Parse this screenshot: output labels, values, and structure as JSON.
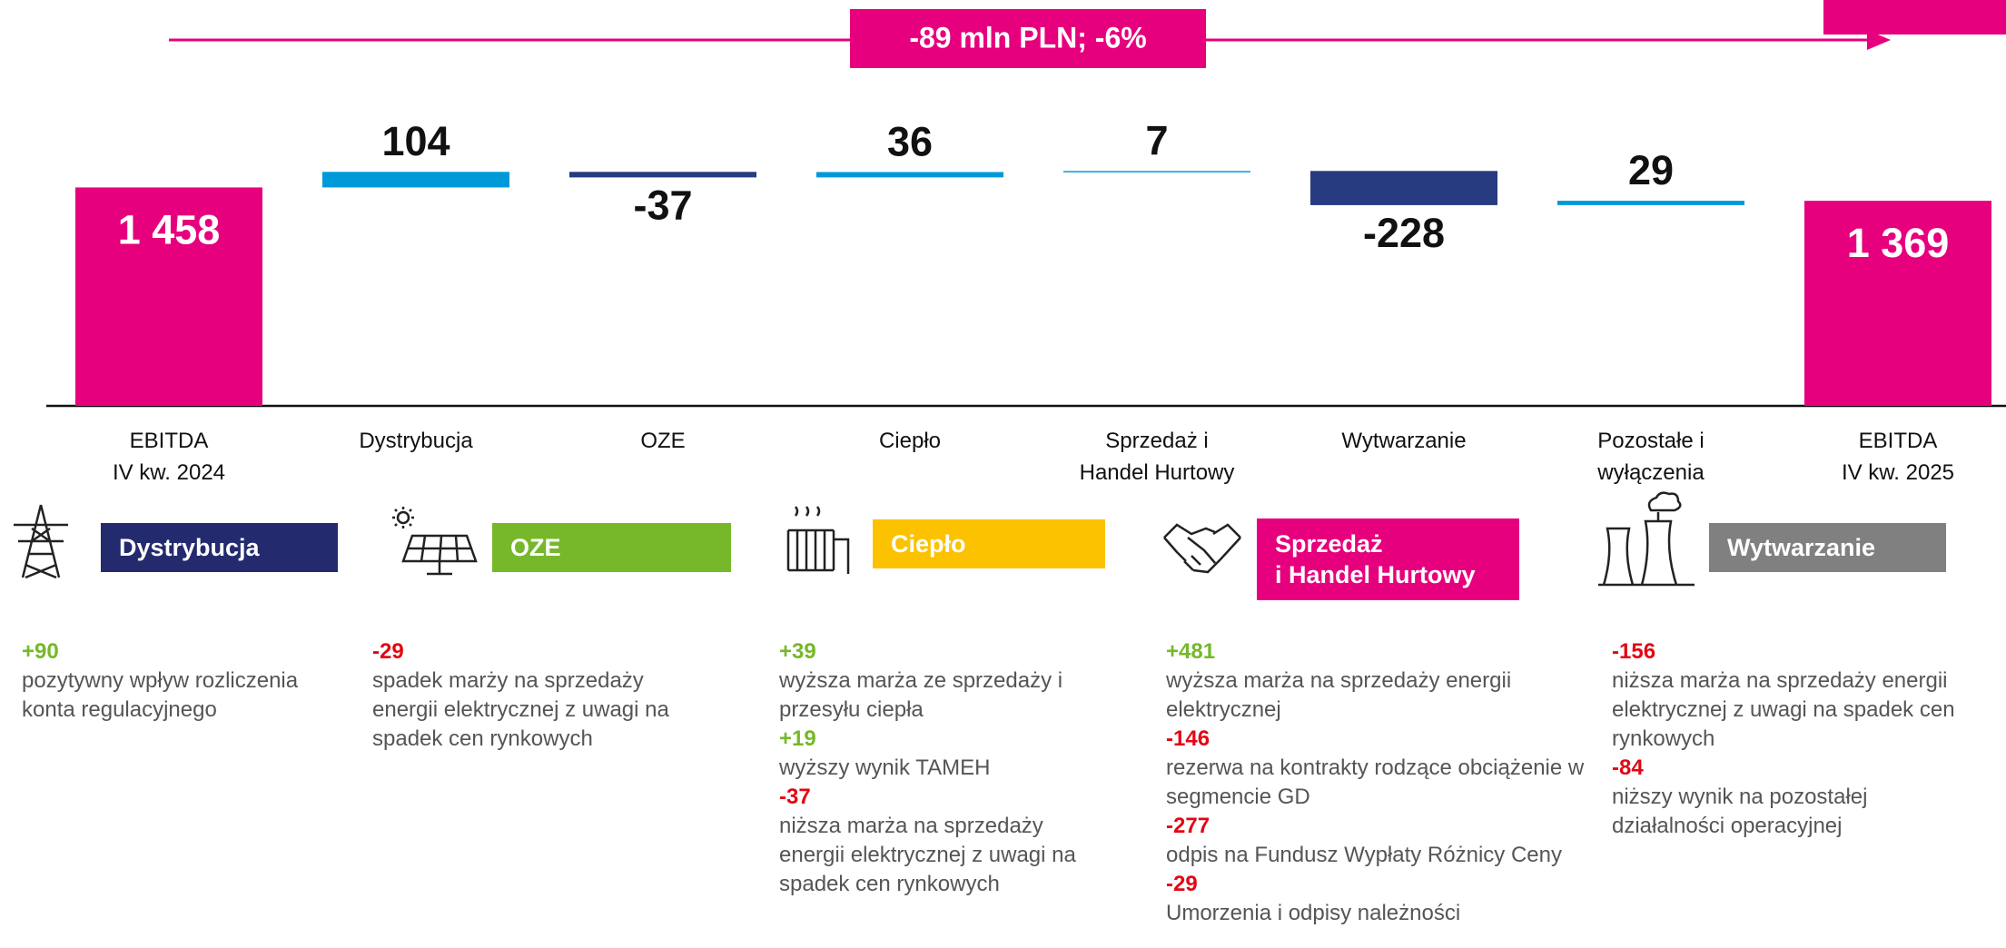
{
  "chart_data": {
    "type": "waterfall",
    "banner": "-89 mln PLN; -6%",
    "categories": [
      "EBITDA\nIV kw. 2024",
      "Dystrybucja",
      "OZE",
      "Ciepło",
      "Sprzedaż i\nHandel Hurtowy",
      "Wytwarzanie",
      "Pozostałe i\nwyłączenia",
      "EBITDA\nIV kw. 2025"
    ],
    "values": [
      1458,
      104,
      -37,
      36,
      7,
      -228,
      29,
      1369
    ],
    "value_labels": [
      "1 458",
      "104",
      "-37",
      "36",
      "7",
      "-228",
      "29",
      "1 369"
    ],
    "is_total": [
      true,
      false,
      false,
      false,
      false,
      false,
      false,
      true
    ],
    "total_color": "#e6007e",
    "increase_color": "#0099d8",
    "decrease_color": "#263b80"
  },
  "sections": [
    {
      "header": "Dystrybucja",
      "color": "#232a6e",
      "notes": [
        {
          "value": "+90",
          "text": "pozytywny wpływ rozliczenia konta regulacyjnego"
        }
      ]
    },
    {
      "header": "OZE",
      "color": "#76b82a",
      "notes": [
        {
          "value": "-29",
          "text": "spadek marży na sprzedaży energii elektrycznej z uwagi na spadek cen rynkowych"
        }
      ]
    },
    {
      "header": "Ciepło",
      "color": "#fcc200",
      "notes": [
        {
          "value": "+39",
          "text": "wyższa marża ze sprzedaży i przesyłu ciepła"
        },
        {
          "value": "+19",
          "text": "wyższy wynik TAMEH"
        },
        {
          "value": "-37",
          "text": "niższa marża na sprzedaży energii elektrycznej z uwagi na spadek cen rynkowych"
        }
      ]
    },
    {
      "header": "Sprzedaż\ni Handel Hurtowy",
      "color": "#e6007e",
      "notes": [
        {
          "value": "+481",
          "text": "wyższa marża na sprzedaży energii elektrycznej"
        },
        {
          "value": "-146",
          "text": "rezerwa na kontrakty rodzące obciążenie w segmencie GD"
        },
        {
          "value": "-277",
          "text": "odpis na Fundusz Wypłaty Różnicy Ceny"
        },
        {
          "value": "-29",
          "text": "Umorzenia i odpisy należności"
        }
      ]
    },
    {
      "header": "Wytwarzanie",
      "color": "#808080",
      "notes": [
        {
          "value": "-156",
          "text": "niższa marża na sprzedaży energii elektrycznej z uwagi na spadek cen rynkowych"
        },
        {
          "value": "-84",
          "text": "niższy wynik na pozostałej działalności operacyjnej"
        }
      ]
    }
  ]
}
